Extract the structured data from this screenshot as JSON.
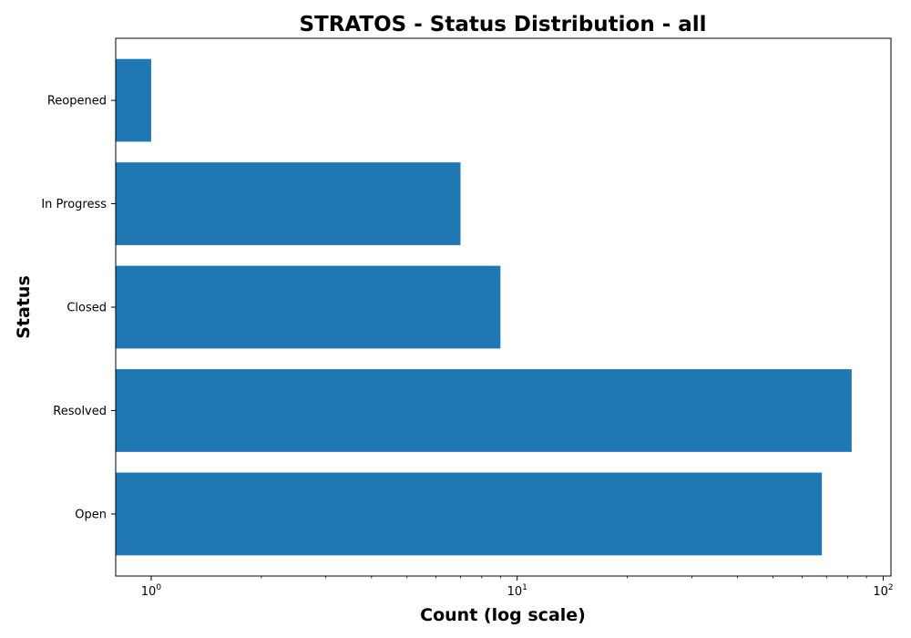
{
  "chart_data": {
    "type": "bar",
    "orientation": "horizontal",
    "title": "STRATOS - Status Distribution - all",
    "xlabel": "Count (log scale)",
    "ylabel": "Status",
    "xscale": "log",
    "xlim": [
      0.8,
      105
    ],
    "categories": [
      "Open",
      "Resolved",
      "Closed",
      "In Progress",
      "Reopened"
    ],
    "values": [
      68,
      82,
      9,
      7,
      1
    ],
    "x_ticks": [
      {
        "value": 1,
        "base": "10",
        "exp": "0"
      },
      {
        "value": 10,
        "base": "10",
        "exp": "1"
      },
      {
        "value": 100,
        "base": "10",
        "exp": "2"
      }
    ],
    "bar_color": "#1f77b4",
    "grid": false,
    "legend": false
  }
}
